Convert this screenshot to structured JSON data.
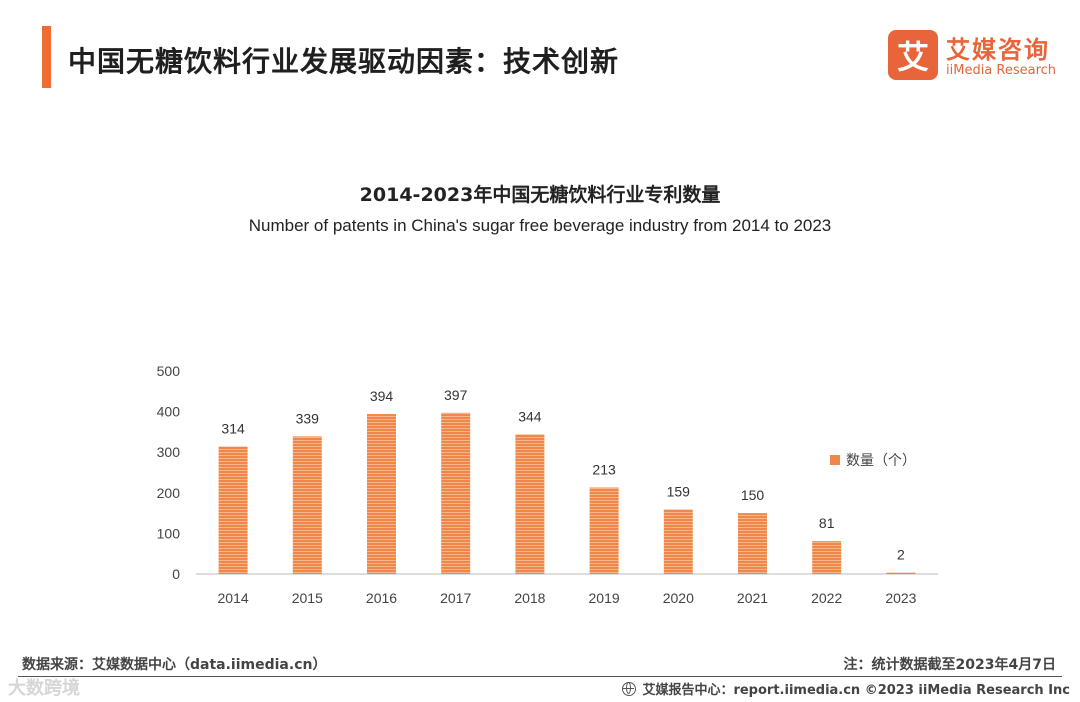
{
  "header": {
    "title": "中国无糖饮料行业发展驱动因素：技术创新",
    "logo": {
      "mark": "艾",
      "name_cn": "艾媒咨询",
      "name_en": "iiMedia Research"
    }
  },
  "chart_data": {
    "type": "bar",
    "title": "2014-2023年中国无糖饮料行业专利数量",
    "subtitle": "Number of patents in China's sugar free beverage industry from 2014 to 2023",
    "categories": [
      "2014",
      "2015",
      "2016",
      "2017",
      "2018",
      "2019",
      "2020",
      "2021",
      "2022",
      "2023"
    ],
    "series": [
      {
        "name": "数量（个）",
        "values": [
          314,
          339,
          394,
          397,
          344,
          213,
          159,
          150,
          81,
          2
        ]
      }
    ],
    "yticks": [
      0,
      100,
      200,
      300,
      400,
      500
    ],
    "ylim": [
      0,
      500
    ],
    "xlabel": "",
    "ylabel": "",
    "grid": false,
    "legend_position": "right",
    "bar_color": "#f0874a"
  },
  "footer": {
    "source": "数据来源：艾媒数据中心（data.iimedia.cn）",
    "note": "注：统计数据截至2023年4月7日",
    "watermark": "大数跨境",
    "report_center": "艾媒报告中心：report.iimedia.cn  ©2023  iiMedia Research  Inc"
  }
}
